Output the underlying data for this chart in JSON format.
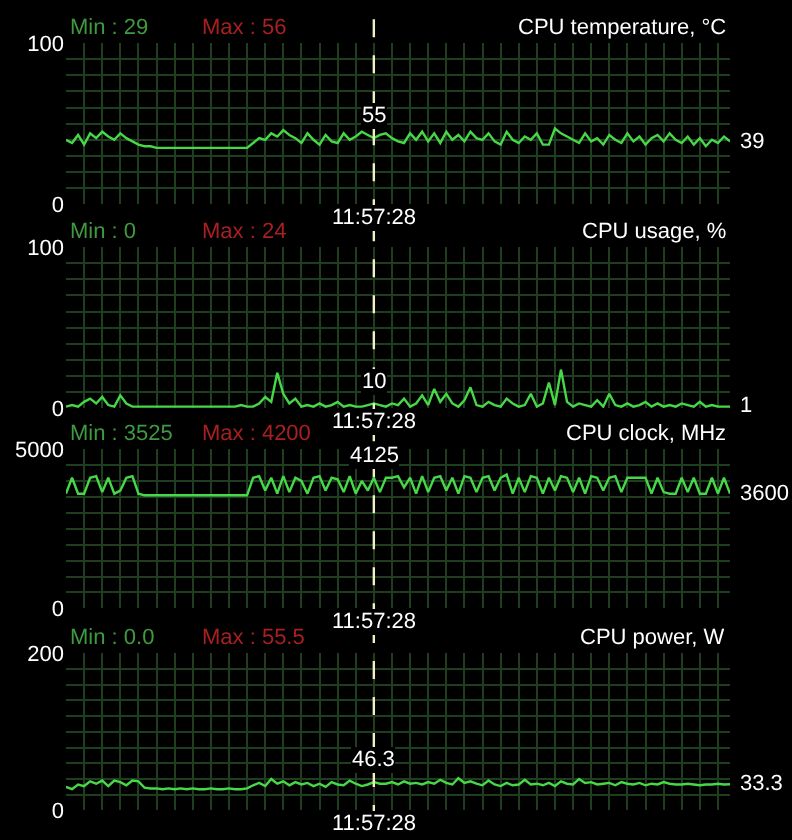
{
  "chart_data": [
    {
      "type": "line",
      "title": "CPU temperature, °C",
      "categories": [
        null,
        null,
        null,
        null,
        null,
        null,
        null,
        null,
        null,
        null,
        null,
        null,
        null,
        null,
        null,
        null,
        null,
        null,
        null,
        null,
        null,
        null,
        null,
        null,
        null,
        null,
        null,
        null,
        null,
        null,
        null,
        null,
        null,
        null,
        null,
        null,
        null,
        null,
        null,
        null,
        null,
        null,
        null,
        null,
        null,
        null,
        null,
        null,
        null,
        null,
        null,
        null,
        null,
        null,
        null,
        null,
        null,
        null,
        null,
        null,
        null,
        null,
        null,
        null,
        null,
        null,
        null,
        null,
        null,
        null,
        null,
        null,
        null,
        null,
        null,
        null,
        null,
        null,
        null,
        null,
        null,
        null,
        null,
        null,
        null,
        null,
        null,
        null,
        null,
        null,
        null,
        null,
        null,
        null,
        null,
        null,
        null,
        null,
        null,
        null,
        null,
        null,
        null,
        null,
        null,
        null,
        null,
        null,
        null,
        null,
        null
      ],
      "series": [
        {
          "color": "#46d846",
          "values": [
            40,
            38,
            43,
            37,
            44,
            41,
            45,
            42,
            40,
            44,
            41,
            39,
            37,
            36,
            36,
            35,
            35,
            35,
            35,
            35,
            35,
            35,
            35,
            35,
            35,
            35,
            35,
            35,
            35,
            35,
            35,
            38,
            41,
            40,
            44,
            42,
            46,
            43,
            41,
            38,
            44,
            40,
            37,
            43,
            39,
            38,
            44,
            40,
            42,
            45,
            43,
            41,
            43,
            44,
            41,
            39,
            38,
            44,
            40,
            45,
            39,
            44,
            38,
            45,
            40,
            43,
            39,
            45,
            41,
            40,
            44,
            39,
            37,
            45,
            40,
            38,
            42,
            40,
            44,
            37,
            37,
            47,
            44,
            42,
            40,
            38,
            44,
            39,
            41,
            37,
            43,
            40,
            38,
            44,
            39,
            42,
            37,
            41,
            43,
            39,
            44,
            40,
            38,
            42,
            37,
            41,
            36,
            40,
            38,
            42,
            39
          ]
        }
      ],
      "ylim": [
        0,
        100
      ],
      "yticks": [
        0,
        {
          "value": 10,
          "label": null
        },
        {
          "value": 20,
          "label": null
        },
        {
          "value": 30,
          "label": null
        },
        {
          "value": 40,
          "label": null
        },
        {
          "value": 50,
          "label": null
        },
        {
          "value": 60,
          "label": null
        },
        {
          "value": 70,
          "label": null
        },
        {
          "value": 80,
          "label": null
        },
        {
          "value": 90,
          "label": null
        },
        100
      ],
      "grid": true,
      "tick_labels": "y",
      "annotations": [
        "Min : 29",
        "Max : 56",
        "11:57:28",
        "55",
        "39"
      ]
    },
    {
      "type": "line",
      "title": "CPU usage, %",
      "categories": [
        null,
        null,
        null,
        null,
        null,
        null,
        null,
        null,
        null,
        null,
        null,
        null,
        null,
        null,
        null,
        null,
        null,
        null,
        null,
        null,
        null,
        null,
        null,
        null,
        null,
        null,
        null,
        null,
        null,
        null,
        null,
        null,
        null,
        null,
        null,
        null,
        null,
        null,
        null,
        null,
        null,
        null,
        null,
        null,
        null,
        null,
        null,
        null,
        null,
        null,
        null,
        null,
        null,
        null,
        null,
        null,
        null,
        null,
        null,
        null,
        null,
        null,
        null,
        null,
        null,
        null,
        null,
        null,
        null,
        null,
        null,
        null,
        null,
        null,
        null,
        null,
        null,
        null,
        null,
        null,
        null,
        null,
        null,
        null,
        null,
        null,
        null,
        null,
        null,
        null,
        null,
        null,
        null,
        null,
        null,
        null,
        null,
        null,
        null,
        null,
        null,
        null,
        null,
        null,
        null,
        null,
        null,
        null,
        null,
        null,
        null
      ],
      "series": [
        {
          "color": "#46d846",
          "values": [
            1,
            2,
            1,
            4,
            6,
            3,
            7,
            2,
            1,
            8,
            3,
            1,
            1,
            1,
            1,
            1,
            1,
            1,
            1,
            1,
            1,
            1,
            1,
            1,
            1,
            1,
            1,
            1,
            1,
            2,
            1,
            1,
            3,
            7,
            4,
            22,
            9,
            3,
            6,
            1,
            2,
            1,
            3,
            1,
            2,
            4,
            1,
            2,
            1,
            1,
            2,
            3,
            2,
            1,
            3,
            2,
            6,
            1,
            3,
            8,
            2,
            12,
            4,
            9,
            3,
            1,
            5,
            13,
            2,
            1,
            4,
            2,
            1,
            6,
            3,
            1,
            2,
            9,
            1,
            3,
            16,
            2,
            24,
            4,
            1,
            3,
            2,
            1,
            5,
            1,
            9,
            2,
            1,
            3,
            1,
            2,
            4,
            1,
            3,
            1,
            2,
            1,
            3,
            2,
            1,
            4,
            1,
            2,
            1,
            1,
            1
          ]
        }
      ],
      "ylim": [
        0,
        100
      ],
      "yticks": [
        0,
        {
          "value": 10,
          "label": null
        },
        {
          "value": 20,
          "label": null
        },
        {
          "value": 30,
          "label": null
        },
        {
          "value": 40,
          "label": null
        },
        {
          "value": 50,
          "label": null
        },
        {
          "value": 60,
          "label": null
        },
        {
          "value": 70,
          "label": null
        },
        {
          "value": 80,
          "label": null
        },
        {
          "value": 90,
          "label": null
        },
        100
      ],
      "grid": true,
      "tick_labels": "y",
      "annotations": [
        "Min : 0",
        "Max : 24",
        "11:57:28",
        "10",
        "1"
      ]
    },
    {
      "type": "line",
      "title": "CPU clock, MHz",
      "categories": [
        null,
        null,
        null,
        null,
        null,
        null,
        null,
        null,
        null,
        null,
        null,
        null,
        null,
        null,
        null,
        null,
        null,
        null,
        null,
        null,
        null,
        null,
        null,
        null,
        null,
        null,
        null,
        null,
        null,
        null,
        null,
        null,
        null,
        null,
        null,
        null,
        null,
        null,
        null,
        null,
        null,
        null,
        null,
        null,
        null,
        null,
        null,
        null,
        null,
        null,
        null,
        null,
        null,
        null,
        null,
        null,
        null,
        null,
        null,
        null,
        null,
        null,
        null,
        null,
        null,
        null,
        null,
        null,
        null,
        null,
        null,
        null,
        null,
        null,
        null,
        null,
        null,
        null,
        null,
        null,
        null,
        null,
        null,
        null,
        null,
        null,
        null,
        null,
        null,
        null,
        null,
        null,
        null,
        null,
        null,
        null,
        null,
        null,
        null,
        null,
        null,
        null,
        null,
        null,
        null,
        null,
        null,
        null,
        null,
        null,
        null
      ],
      "series": [
        {
          "color": "#46d846",
          "values": [
            3600,
            4100,
            3600,
            3600,
            4100,
            4150,
            3650,
            4100,
            3600,
            3700,
            4100,
            4150,
            3600,
            3550,
            3550,
            3550,
            3550,
            3550,
            3550,
            3550,
            3550,
            3550,
            3550,
            3550,
            3550,
            3550,
            3550,
            3550,
            3550,
            3550,
            3550,
            4100,
            4150,
            3700,
            4100,
            3600,
            4150,
            3650,
            4100,
            4000,
            3600,
            4100,
            4150,
            3700,
            4100,
            4050,
            3650,
            4150,
            3600,
            4000,
            3700,
            4100,
            3650,
            4100,
            4100,
            4150,
            3800,
            4100,
            3600,
            4150,
            3650,
            4100,
            4150,
            3700,
            4100,
            3600,
            4150,
            4100,
            3650,
            4100,
            4150,
            3700,
            4100,
            4200,
            3600,
            4100,
            3650,
            4150,
            4100,
            3600,
            4100,
            3700,
            4150,
            4100,
            3650,
            4100,
            3600,
            4150,
            4100,
            3700,
            4100,
            4150,
            3650,
            4100,
            4100,
            4100,
            4100,
            3600,
            4100,
            3650,
            3600,
            3600,
            4100,
            3650,
            4100,
            3600,
            3600,
            4100,
            3600,
            4100,
            3600
          ]
        }
      ],
      "ylim": [
        0,
        5000
      ],
      "yticks": [
        0,
        {
          "value": 500,
          "label": null
        },
        {
          "value": 1000,
          "label": null
        },
        {
          "value": 1500,
          "label": null
        },
        {
          "value": 2000,
          "label": null
        },
        {
          "value": 2500,
          "label": null
        },
        {
          "value": 3000,
          "label": null
        },
        {
          "value": 3500,
          "label": null
        },
        {
          "value": 4000,
          "label": null
        },
        {
          "value": 4500,
          "label": null
        },
        5000
      ],
      "grid": true,
      "tick_labels": "y",
      "annotations": [
        "Min : 3525",
        "Max : 4200",
        "11:57:28",
        "4125",
        "3600"
      ]
    },
    {
      "type": "line",
      "title": "CPU power, W",
      "categories": [
        null,
        null,
        null,
        null,
        null,
        null,
        null,
        null,
        null,
        null,
        null,
        null,
        null,
        null,
        null,
        null,
        null,
        null,
        null,
        null,
        null,
        null,
        null,
        null,
        null,
        null,
        null,
        null,
        null,
        null,
        null,
        null,
        null,
        null,
        null,
        null,
        null,
        null,
        null,
        null,
        null,
        null,
        null,
        null,
        null,
        null,
        null,
        null,
        null,
        null,
        null,
        null,
        null,
        null,
        null,
        null,
        null,
        null,
        null,
        null,
        null,
        null,
        null,
        null,
        null,
        null,
        null,
        null,
        null,
        null,
        null,
        null,
        null,
        null,
        null,
        null,
        null,
        null,
        null,
        null,
        null,
        null,
        null,
        null,
        null,
        null,
        null,
        null,
        null,
        null,
        null,
        null,
        null,
        null,
        null,
        null,
        null,
        null,
        null,
        null,
        null,
        null,
        null,
        null,
        null,
        null,
        null,
        null,
        null,
        null,
        null
      ],
      "series": [
        {
          "color": "#46d846",
          "values": [
            30,
            27,
            33,
            31,
            37,
            34,
            38,
            31,
            38,
            36,
            32,
            38,
            37,
            29,
            28,
            28,
            27,
            28,
            27,
            28,
            27,
            28,
            27,
            27,
            28,
            27,
            27,
            28,
            27,
            27,
            28,
            32,
            35,
            31,
            40,
            34,
            37,
            32,
            36,
            33,
            35,
            31,
            34,
            30,
            36,
            33,
            32,
            38,
            34,
            31,
            33,
            36,
            34,
            34,
            36,
            33,
            37,
            34,
            35,
            33,
            36,
            34,
            39,
            35,
            33,
            41,
            35,
            37,
            34,
            32,
            38,
            33,
            31,
            35,
            32,
            33,
            39,
            33,
            34,
            32,
            35,
            31,
            37,
            34,
            33,
            40,
            35,
            36,
            33,
            34,
            35,
            32,
            36,
            34,
            33,
            35,
            32,
            34,
            33,
            36,
            34,
            33,
            33,
            34,
            33,
            32,
            33,
            33,
            34,
            33,
            33.3
          ]
        }
      ],
      "ylim": [
        0,
        200
      ],
      "yticks": [
        0,
        {
          "value": 20,
          "label": null
        },
        {
          "value": 40,
          "label": null
        },
        {
          "value": 60,
          "label": null
        },
        {
          "value": 80,
          "label": null
        },
        {
          "value": 100,
          "label": null
        },
        {
          "value": 120,
          "label": null
        },
        {
          "value": 140,
          "label": null
        },
        {
          "value": 160,
          "label": null
        },
        {
          "value": 180,
          "label": null
        },
        200
      ],
      "grid": true,
      "tick_labels": "y",
      "annotations": [
        "Min : 0.0",
        "Max : 55.5",
        "11:57:28",
        "46.3",
        "33.3"
      ]
    }
  ]
}
